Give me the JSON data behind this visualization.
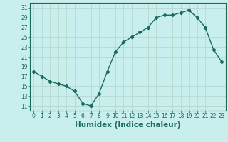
{
  "xlabel": "Humidex (Indice chaleur)",
  "x": [
    0,
    1,
    2,
    3,
    4,
    5,
    6,
    7,
    8,
    9,
    10,
    11,
    12,
    13,
    14,
    15,
    16,
    17,
    18,
    19,
    20,
    21,
    22,
    23
  ],
  "y": [
    18,
    17,
    16,
    15.5,
    15,
    14,
    11.5,
    11,
    13.5,
    18,
    22,
    24,
    25,
    26,
    27,
    29,
    29.5,
    29.5,
    30,
    30.5,
    29,
    27,
    22.5,
    20
  ],
  "line_color": "#1a6b5a",
  "marker": "D",
  "marker_size": 2.2,
  "bg_color": "#c8eeee",
  "grid_color": "#b8d8cc",
  "ylim": [
    10,
    32
  ],
  "yticks": [
    11,
    13,
    15,
    17,
    19,
    21,
    23,
    25,
    27,
    29,
    31
  ],
  "xlim": [
    -0.5,
    23.5
  ],
  "xticks": [
    0,
    1,
    2,
    3,
    4,
    5,
    6,
    7,
    8,
    9,
    10,
    11,
    12,
    13,
    14,
    15,
    16,
    17,
    18,
    19,
    20,
    21,
    22,
    23
  ],
  "tick_label_size": 5.5,
  "axis_label_size": 7.5,
  "line_width": 1.0
}
